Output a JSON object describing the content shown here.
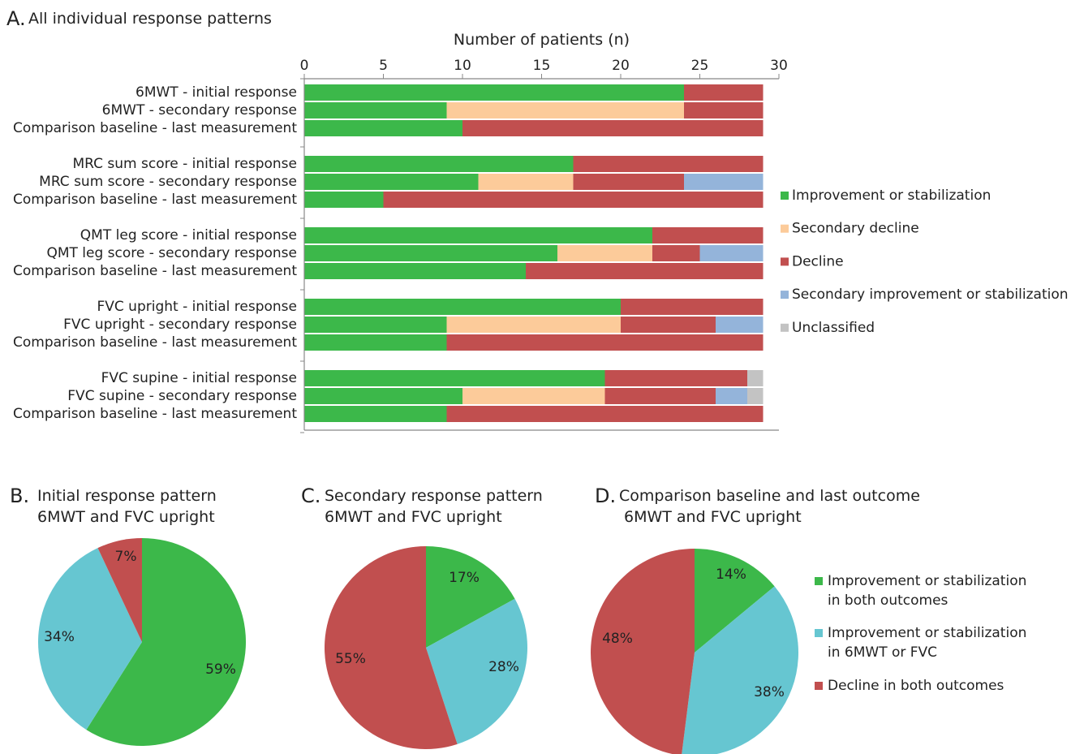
{
  "chart_data": [
    {
      "type": "bar",
      "stacked": true,
      "orientation": "horizontal",
      "title": "All individual response patterns",
      "title_prefix": "A.",
      "xlabel": "Number of patients (n)",
      "xlim": [
        0,
        30
      ],
      "xticks": [
        0,
        5,
        10,
        15,
        20,
        25,
        30
      ],
      "categories": [
        "6MWT - initial response",
        "6MWT - secondary response",
        "Comparison baseline - last measurement",
        "MRC sum score - initial response",
        "MRC sum score - secondary response",
        "Comparison baseline - last measurement",
        "QMT leg score - initial response",
        "QMT leg score - secondary response",
        "Comparison baseline - last measurement",
        "FVC upright - initial response",
        "FVC upright - secondary response",
        "Comparison baseline - last measurement",
        "FVC supine - initial response",
        "FVC supine - secondary response",
        "Comparison baseline - last measurement"
      ],
      "series": [
        {
          "name": "Improvement or stabilization",
          "color": "#3cb84a",
          "values": [
            24,
            9,
            10,
            17,
            11,
            5,
            22,
            16,
            14,
            20,
            9,
            9,
            19,
            10,
            9
          ]
        },
        {
          "name": "Secondary decline",
          "color": "#fccb9a",
          "values": [
            0,
            15,
            0,
            0,
            6,
            0,
            0,
            6,
            0,
            0,
            11,
            0,
            0,
            9,
            0
          ]
        },
        {
          "name": "Decline",
          "color": "#c14f4f",
          "values": [
            5,
            5,
            19,
            12,
            7,
            24,
            7,
            3,
            15,
            9,
            6,
            20,
            9,
            7,
            20
          ]
        },
        {
          "name": "Secondary improvement or stabilization",
          "color": "#94b4da",
          "values": [
            0,
            0,
            0,
            0,
            5,
            0,
            0,
            4,
            0,
            0,
            3,
            0,
            0,
            2,
            0
          ]
        },
        {
          "name": "Unclassified",
          "color": "#c3c3c3",
          "values": [
            0,
            0,
            0,
            0,
            0,
            0,
            0,
            0,
            0,
            0,
            0,
            0,
            1,
            1,
            0
          ]
        }
      ],
      "legend": "right"
    },
    {
      "type": "pie",
      "title_prefix": "B.",
      "title_line1": "Initial response pattern",
      "title_line2": "6MWT and FVC upright",
      "slices": [
        {
          "label": "59%",
          "value": 59,
          "color": "#3cb84a"
        },
        {
          "label": "34%",
          "value": 34,
          "color": "#66c6d1"
        },
        {
          "label": "7%",
          "value": 7,
          "color": "#c14f4f"
        }
      ]
    },
    {
      "type": "pie",
      "title_prefix": "C.",
      "title_line1": "Secondary response  pattern",
      "title_line2": "6MWT and FVC upright",
      "slices": [
        {
          "label": "17%",
          "value": 17,
          "color": "#3cb84a"
        },
        {
          "label": "28%",
          "value": 28,
          "color": "#66c6d1"
        },
        {
          "label": "55%",
          "value": 55,
          "color": "#c14f4f"
        }
      ]
    },
    {
      "type": "pie",
      "title_prefix": "D.",
      "title_line1": "Comparison baseline and last outcome",
      "title_line2": "6MWT and FVC upright",
      "slices": [
        {
          "label": "14%",
          "value": 14,
          "color": "#3cb84a"
        },
        {
          "label": "38%",
          "value": 38,
          "color": "#66c6d1"
        },
        {
          "label": "48%",
          "value": 48,
          "color": "#c14f4f"
        }
      ],
      "legend": [
        {
          "line1": "Improvement or stabilization",
          "line2": "in both outcomes",
          "color": "#3cb84a"
        },
        {
          "line1": "Improvement or stabilization",
          "line2": "in 6MWT or FVC",
          "color": "#66c6d1"
        },
        {
          "line1": "Decline in both outcomes",
          "line2": "",
          "color": "#c14f4f"
        }
      ]
    }
  ]
}
